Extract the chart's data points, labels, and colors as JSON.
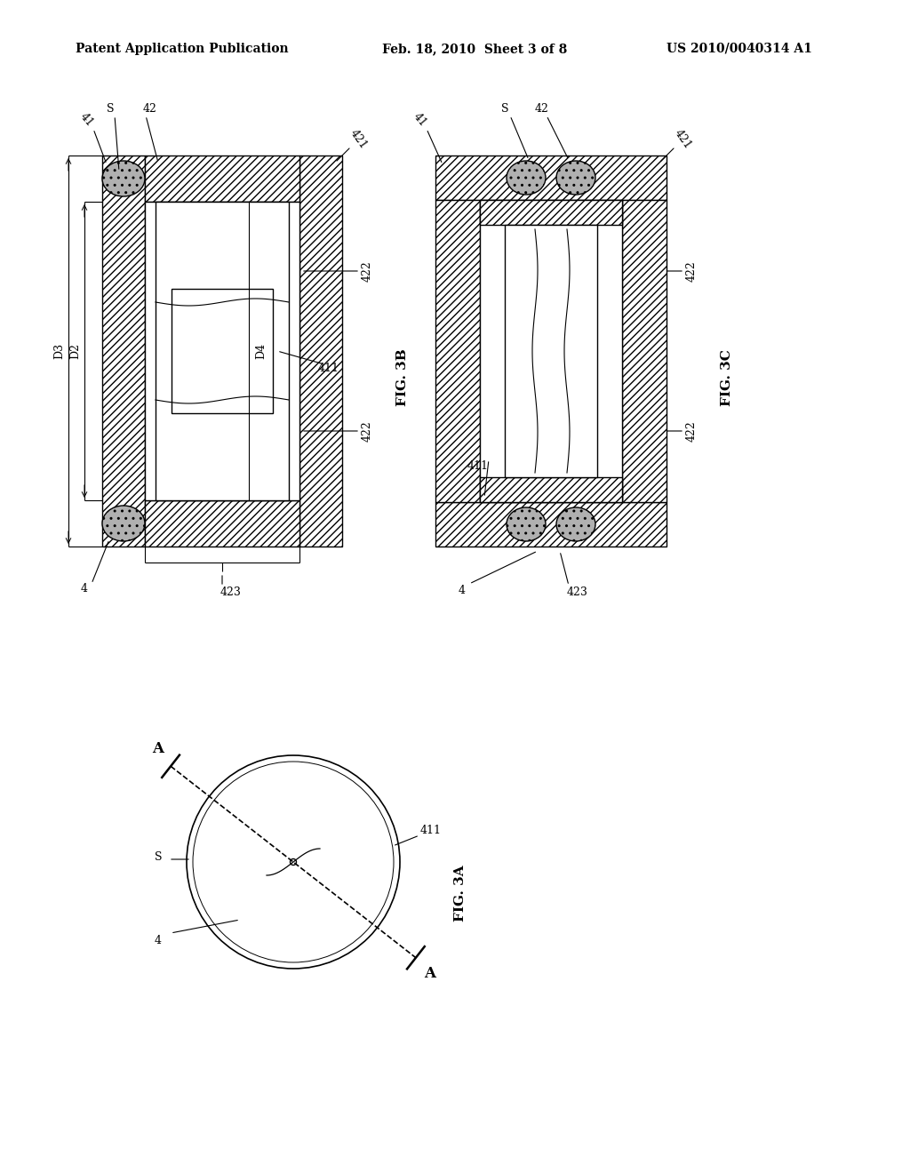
{
  "bg_color": "#ffffff",
  "header_text": "Patent Application Publication",
  "header_date": "Feb. 18, 2010  Sheet 3 of 8",
  "header_patent": "US 2010/0040314 A1",
  "fig3b_caption": "FIG. 3B",
  "fig3c_caption": "FIG. 3C",
  "fig3a_caption": "FIG. 3A",
  "line_color": "#000000"
}
